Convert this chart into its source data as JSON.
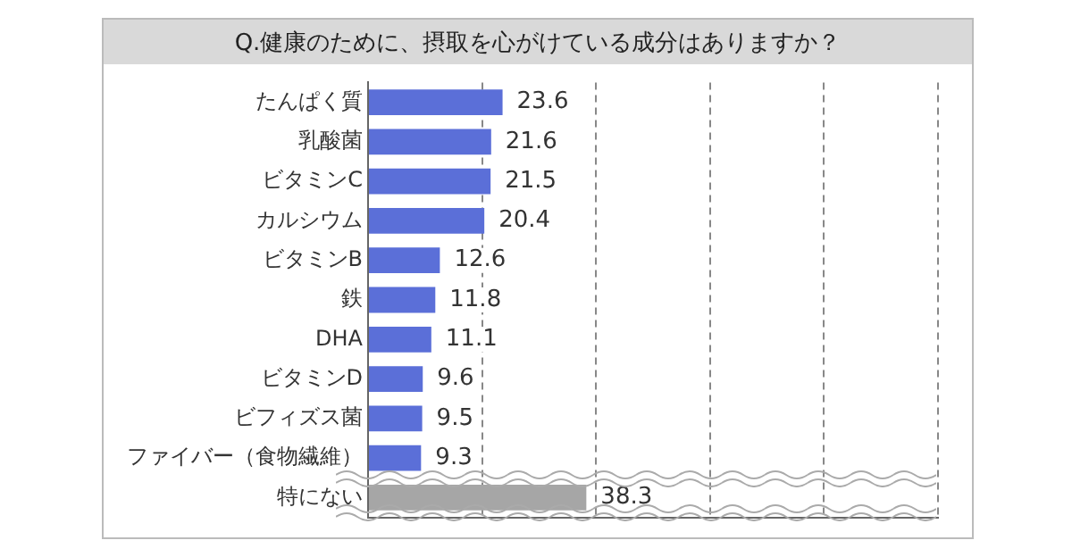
{
  "chart_data": {
    "type": "bar",
    "orientation": "horizontal",
    "title": "Q.健康のために、摂取を心がけている成分はありますか？",
    "categories": [
      "たんぱく質",
      "乳酸菌",
      "ビタミンC",
      "カルシウム",
      "ビタミンB",
      "鉄",
      "DHA",
      "ビタミンD",
      "ビフィズス菌",
      "ファイバー（食物繊維）",
      "特にない"
    ],
    "values": [
      23.6,
      21.6,
      21.5,
      20.4,
      12.6,
      11.8,
      11.1,
      9.6,
      9.5,
      9.3,
      38.3
    ],
    "colors": [
      "#5b6fd8",
      "#5b6fd8",
      "#5b6fd8",
      "#5b6fd8",
      "#5b6fd8",
      "#5b6fd8",
      "#5b6fd8",
      "#5b6fd8",
      "#5b6fd8",
      "#5b6fd8",
      "#a6a6a6"
    ],
    "xlim": [
      0,
      100
    ],
    "grid": "x",
    "tick_labels": "y",
    "data_labels": true,
    "legend": false
  }
}
